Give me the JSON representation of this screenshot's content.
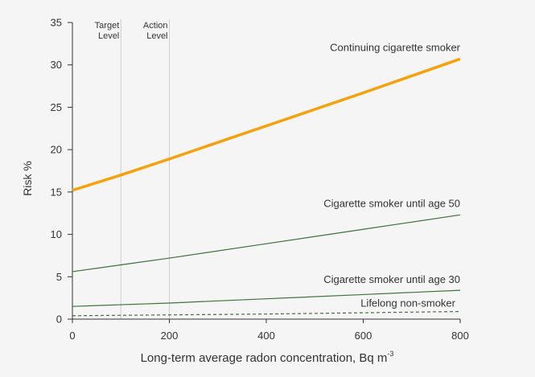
{
  "chart_data": {
    "type": "line",
    "xlabel": "Long-term average radon concentration, Bq m",
    "xlabel_superscript": "-3",
    "ylabel": "Risk %",
    "xlim": [
      0,
      800
    ],
    "ylim": [
      0,
      35
    ],
    "xticks": [
      0,
      200,
      400,
      600,
      800
    ],
    "yticks": [
      0,
      5,
      10,
      15,
      20,
      25,
      30,
      35
    ],
    "grid": false,
    "reference_lines": [
      {
        "x": 100,
        "label": [
          "Target",
          "Level"
        ],
        "color": "#cccccc"
      },
      {
        "x": 200,
        "label": [
          "Action",
          "Level"
        ],
        "color": "#cccccc"
      }
    ],
    "series": [
      {
        "name": "Continuing cigarette smoker",
        "x": [
          0,
          100,
          200,
          400,
          600,
          800
        ],
        "y": [
          15.2,
          17.0,
          18.9,
          22.8,
          26.7,
          30.7
        ],
        "color": "#f5a10c",
        "style": "solid",
        "weight": "thick"
      },
      {
        "name": "Cigarette smoker until age 50",
        "x": [
          0,
          100,
          200,
          400,
          600,
          800
        ],
        "y": [
          5.6,
          6.4,
          7.2,
          8.9,
          10.6,
          12.3
        ],
        "color": "#3f7040",
        "style": "solid",
        "weight": "thin"
      },
      {
        "name": "Cigarette smoker until age 30",
        "x": [
          0,
          100,
          200,
          400,
          600,
          800
        ],
        "y": [
          1.5,
          1.7,
          1.9,
          2.4,
          2.9,
          3.4
        ],
        "color": "#3f7040",
        "style": "solid",
        "weight": "thin"
      },
      {
        "name": "Lifelong non-smoker",
        "x": [
          0,
          200,
          400,
          600,
          800
        ],
        "y": [
          0.4,
          0.5,
          0.6,
          0.75,
          0.9
        ],
        "color": "#3f7040",
        "style": "dashed",
        "weight": "thin"
      }
    ]
  }
}
